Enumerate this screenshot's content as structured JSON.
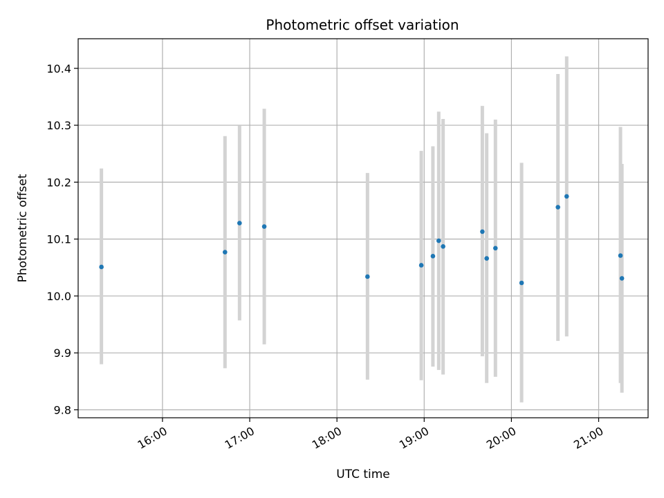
{
  "chart_data": {
    "type": "scatter",
    "title": "Photometric offset variation",
    "xlabel": "UTC time",
    "ylabel": "Photometric offset",
    "grid": true,
    "legend": "none",
    "x_axis": {
      "range": [
        "15:02",
        "21:34"
      ],
      "ticks": [
        "16:00",
        "17:00",
        "18:00",
        "19:00",
        "20:00",
        "21:00"
      ]
    },
    "y_axis": {
      "range": [
        9.786,
        10.452
      ],
      "ticks": [
        "9.8",
        "9.9",
        "10.0",
        "10.1",
        "10.2",
        "10.3",
        "10.4"
      ]
    },
    "colors": {
      "point": "#1f77b4",
      "error_bar": "#d3d3d3"
    },
    "points": [
      {
        "x": "15:18",
        "y": 10.051,
        "y_low": 9.88,
        "y_high": 10.224
      },
      {
        "x": "16:43",
        "y": 10.077,
        "y_low": 9.873,
        "y_high": 10.281
      },
      {
        "x": "16:53",
        "y": 10.128,
        "y_low": 9.957,
        "y_high": 10.299
      },
      {
        "x": "17:10",
        "y": 10.122,
        "y_low": 9.915,
        "y_high": 10.329
      },
      {
        "x": "18:21",
        "y": 10.034,
        "y_low": 9.853,
        "y_high": 10.216
      },
      {
        "x": "18:58",
        "y": 10.054,
        "y_low": 9.852,
        "y_high": 10.255
      },
      {
        "x": "19:06",
        "y": 10.07,
        "y_low": 9.876,
        "y_high": 10.263
      },
      {
        "x": "19:10",
        "y": 10.097,
        "y_low": 9.87,
        "y_high": 10.324
      },
      {
        "x": "19:13",
        "y": 10.087,
        "y_low": 9.862,
        "y_high": 10.311
      },
      {
        "x": "19:40",
        "y": 10.113,
        "y_low": 9.894,
        "y_high": 10.334
      },
      {
        "x": "19:43",
        "y": 10.066,
        "y_low": 9.847,
        "y_high": 10.286
      },
      {
        "x": "19:49",
        "y": 10.084,
        "y_low": 9.858,
        "y_high": 10.31
      },
      {
        "x": "20:07",
        "y": 10.023,
        "y_low": 9.813,
        "y_high": 10.234
      },
      {
        "x": "20:32",
        "y": 10.156,
        "y_low": 9.921,
        "y_high": 10.39
      },
      {
        "x": "20:38",
        "y": 10.175,
        "y_low": 9.929,
        "y_high": 10.421
      },
      {
        "x": "21:15",
        "y": 10.071,
        "y_low": 9.847,
        "y_high": 10.297
      },
      {
        "x": "21:16",
        "y": 10.031,
        "y_low": 9.83,
        "y_high": 10.232
      }
    ]
  }
}
